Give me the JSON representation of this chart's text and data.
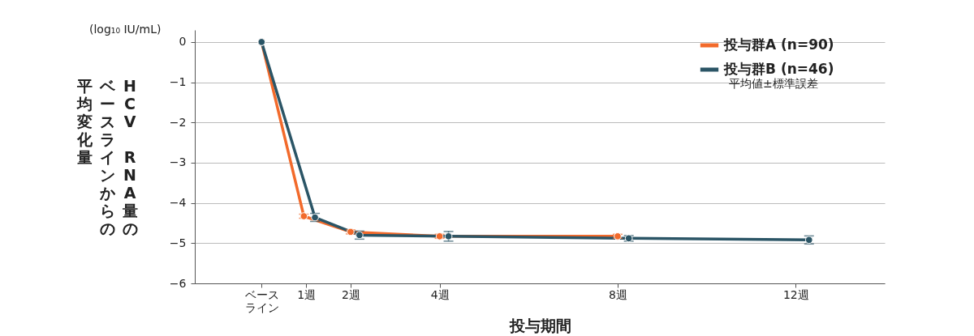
{
  "chart_data": {
    "type": "line",
    "xlabel": "投与期間",
    "ylabel": [
      "HCV RNA量の",
      "ベースラインからの",
      "平均変化量"
    ],
    "annotations": [
      "(log₁₀ IU/mL)",
      "平均値±標準誤差"
    ],
    "xlim": [
      -1.5,
      14
    ],
    "xticks": [
      {
        "value": 0,
        "label": "ベースライン"
      },
      {
        "value": 1,
        "label": "1週"
      },
      {
        "value": 2,
        "label": "2週"
      },
      {
        "value": 4,
        "label": "4週"
      },
      {
        "value": 8,
        "label": "8週"
      },
      {
        "value": 12,
        "label": "12週"
      }
    ],
    "ylim": [
      -6,
      0.3
    ],
    "yticks": [
      0,
      {
        "value": -1,
        "label": "−1"
      },
      {
        "value": -2,
        "label": "−2"
      },
      {
        "value": -3,
        "label": "−3"
      },
      {
        "value": -4,
        "label": "−4"
      },
      {
        "value": -5,
        "label": "−5"
      },
      {
        "value": -6,
        "label": "−6"
      }
    ],
    "grid": "y",
    "legend": "top right",
    "marker": "circle",
    "line_style": "solid",
    "series": [
      {
        "name": "投与群A (n=90)",
        "color": "#f26a2b",
        "x": [
          0,
          0.95,
          2,
          4,
          8
        ],
        "values": [
          0,
          -4.33,
          -4.72,
          -4.83,
          -4.83
        ],
        "errors": [
          null,
          0.05,
          0.05,
          0.05,
          0.05
        ]
      },
      {
        "name": "投与群B (n=46)",
        "color": "#2b5566",
        "x": [
          0,
          1.2,
          2.2,
          4.2,
          8.25,
          12.3
        ],
        "values": [
          0,
          -4.36,
          -4.8,
          -4.83,
          -4.88,
          -4.92
        ],
        "errors": [
          null,
          0.1,
          0.1,
          0.12,
          0.07,
          0.1
        ]
      }
    ]
  }
}
